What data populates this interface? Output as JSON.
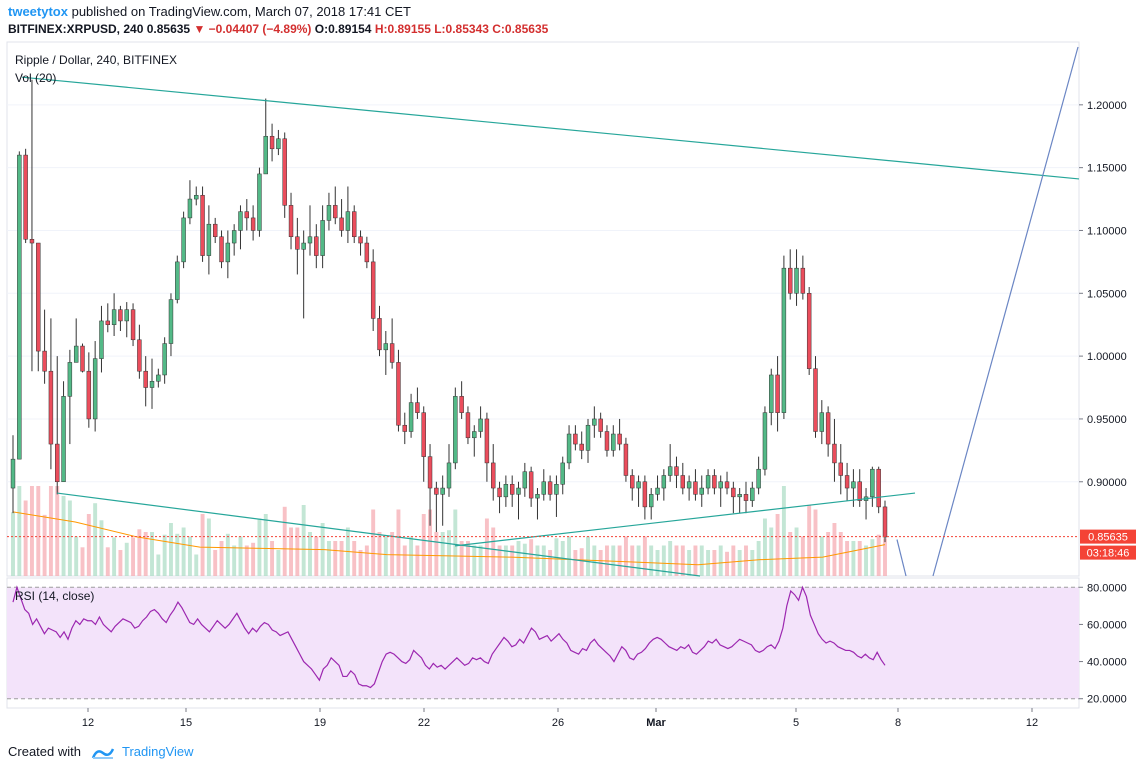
{
  "header": {
    "author": "tweetytox",
    "published_text": "published on TradingView.com, March 07, 2018 17:41 CET",
    "symbol": "BITFINEX:XRPUSD, 240",
    "last": "0.85635",
    "change": "▼ −0.04407 (−4.89%)",
    "open": "O:0.89154",
    "high": "H:0.89155",
    "low": "L:0.85343",
    "close": "C:0.85635"
  },
  "footer": {
    "created_with": "Created with",
    "brand": "TradingView"
  },
  "colors": {
    "up": "#53b987",
    "down": "#eb4d5c",
    "trendline": "#26a69a",
    "projection": "#6b86c4",
    "ma": "#ff9800",
    "rsi_line": "#9c27b0",
    "rsi_band": "#f3e3fa",
    "price_label": "#f44336"
  },
  "chart_data": [
    {
      "type": "candlestick",
      "title": "Ripple / Dollar, 240, BITFINEX",
      "volume_label": "Vol (20)",
      "x_ticks": [
        "12",
        "15",
        "19",
        "22",
        "26",
        "Mar",
        "5",
        "8",
        "12"
      ],
      "y_ticks": [
        "1.20000",
        "1.15000",
        "1.10000",
        "1.05000",
        "1.00000",
        "0.95000",
        "0.90000"
      ],
      "ylim": [
        0.825,
        1.25
      ],
      "current_price_label": "0.85635",
      "countdown_label": "03:18:46",
      "candles": [
        [
          0.895,
          0.937,
          0.875,
          0.918
        ],
        [
          0.918,
          1.163,
          0.918,
          1.16
        ],
        [
          1.16,
          1.165,
          1.09,
          1.093
        ],
        [
          1.093,
          1.22,
          0.988,
          1.09
        ],
        [
          1.09,
          1.09,
          0.988,
          1.004
        ],
        [
          1.004,
          1.037,
          0.978,
          0.988
        ],
        [
          0.988,
          1.03,
          0.91,
          0.93
        ],
        [
          0.93,
          1.0,
          0.89,
          0.9
        ],
        [
          0.9,
          0.98,
          0.9,
          0.968
        ],
        [
          0.968,
          1.005,
          0.93,
          0.995
        ],
        [
          0.995,
          1.03,
          0.995,
          1.008
        ],
        [
          1.008,
          1.01,
          0.987,
          0.988
        ],
        [
          0.988,
          1.003,
          0.943,
          0.95
        ],
        [
          0.95,
          1.012,
          0.94,
          0.998
        ],
        [
          0.998,
          1.04,
          0.987,
          1.028
        ],
        [
          1.028,
          1.042,
          1.019,
          1.025
        ],
        [
          1.025,
          1.05,
          1.016,
          1.037
        ],
        [
          1.037,
          1.04,
          1.02,
          1.028
        ],
        [
          1.028,
          1.043,
          1.015,
          1.037
        ],
        [
          1.037,
          1.042,
          1.008,
          1.013
        ],
        [
          1.013,
          1.025,
          0.982,
          0.988
        ],
        [
          0.988,
          1.0,
          0.96,
          0.975
        ],
        [
          0.975,
          0.998,
          0.958,
          0.98
        ],
        [
          0.98,
          0.99,
          0.975,
          0.985
        ],
        [
          0.985,
          1.015,
          0.978,
          1.01
        ],
        [
          1.01,
          1.05,
          1.0,
          1.045
        ],
        [
          1.045,
          1.08,
          1.042,
          1.075
        ],
        [
          1.075,
          1.115,
          1.07,
          1.11
        ],
        [
          1.11,
          1.14,
          1.105,
          1.125
        ],
        [
          1.125,
          1.135,
          1.12,
          1.128
        ],
        [
          1.128,
          1.135,
          1.075,
          1.08
        ],
        [
          1.08,
          1.12,
          1.065,
          1.105
        ],
        [
          1.105,
          1.11,
          1.09,
          1.095
        ],
        [
          1.095,
          1.1,
          1.07,
          1.075
        ],
        [
          1.075,
          1.1,
          1.062,
          1.09
        ],
        [
          1.09,
          1.105,
          1.08,
          1.1
        ],
        [
          1.1,
          1.12,
          1.085,
          1.115
        ],
        [
          1.115,
          1.125,
          1.1,
          1.11
        ],
        [
          1.11,
          1.12,
          1.092,
          1.1
        ],
        [
          1.1,
          1.15,
          1.095,
          1.145
        ],
        [
          1.145,
          1.205,
          1.145,
          1.175
        ],
        [
          1.175,
          1.185,
          1.155,
          1.165
        ],
        [
          1.165,
          1.18,
          1.16,
          1.173
        ],
        [
          1.173,
          1.178,
          1.11,
          1.12
        ],
        [
          1.12,
          1.13,
          1.085,
          1.095
        ],
        [
          1.095,
          1.11,
          1.065,
          1.085
        ],
        [
          1.085,
          1.1,
          1.03,
          1.09
        ],
        [
          1.09,
          1.12,
          1.08,
          1.095
        ],
        [
          1.095,
          1.105,
          1.07,
          1.08
        ],
        [
          1.08,
          1.12,
          1.07,
          1.108
        ],
        [
          1.108,
          1.13,
          1.1,
          1.12
        ],
        [
          1.12,
          1.135,
          1.105,
          1.11
        ],
        [
          1.11,
          1.125,
          1.095,
          1.1
        ],
        [
          1.1,
          1.135,
          1.09,
          1.115
        ],
        [
          1.115,
          1.12,
          1.09,
          1.095
        ],
        [
          1.095,
          1.1,
          1.08,
          1.09
        ],
        [
          1.09,
          1.095,
          1.07,
          1.075
        ],
        [
          1.075,
          1.085,
          1.02,
          1.03
        ],
        [
          1.03,
          1.04,
          1.0,
          1.005
        ],
        [
          1.005,
          1.02,
          0.985,
          1.01
        ],
        [
          1.01,
          1.03,
          0.99,
          0.995
        ],
        [
          0.995,
          1.005,
          0.94,
          0.945
        ],
        [
          0.945,
          0.955,
          0.93,
          0.94
        ],
        [
          0.94,
          0.97,
          0.935,
          0.963
        ],
        [
          0.963,
          0.975,
          0.95,
          0.955
        ],
        [
          0.955,
          0.96,
          0.9,
          0.92
        ],
        [
          0.92,
          0.93,
          0.865,
          0.895
        ],
        [
          0.895,
          0.9,
          0.86,
          0.89
        ],
        [
          0.89,
          0.905,
          0.865,
          0.895
        ],
        [
          0.895,
          0.93,
          0.888,
          0.915
        ],
        [
          0.915,
          0.975,
          0.91,
          0.968
        ],
        [
          0.968,
          0.98,
          0.95,
          0.955
        ],
        [
          0.955,
          0.96,
          0.93,
          0.935
        ],
        [
          0.935,
          0.945,
          0.92,
          0.94
        ],
        [
          0.94,
          0.96,
          0.935,
          0.95
        ],
        [
          0.95,
          0.955,
          0.9,
          0.915
        ],
        [
          0.915,
          0.93,
          0.885,
          0.895
        ],
        [
          0.895,
          0.9,
          0.875,
          0.888
        ],
        [
          0.888,
          0.905,
          0.88,
          0.898
        ],
        [
          0.898,
          0.905,
          0.88,
          0.89
        ],
        [
          0.89,
          0.9,
          0.87,
          0.895
        ],
        [
          0.895,
          0.915,
          0.888,
          0.908
        ],
        [
          0.908,
          0.912,
          0.88,
          0.887
        ],
        [
          0.887,
          0.895,
          0.87,
          0.89
        ],
        [
          0.89,
          0.91,
          0.885,
          0.9
        ],
        [
          0.9,
          0.905,
          0.885,
          0.89
        ],
        [
          0.89,
          0.905,
          0.872,
          0.898
        ],
        [
          0.898,
          0.92,
          0.89,
          0.915
        ],
        [
          0.915,
          0.945,
          0.91,
          0.938
        ],
        [
          0.938,
          0.945,
          0.925,
          0.93
        ],
        [
          0.93,
          0.94,
          0.918,
          0.925
        ],
        [
          0.925,
          0.95,
          0.915,
          0.945
        ],
        [
          0.945,
          0.96,
          0.935,
          0.95
        ],
        [
          0.95,
          0.955,
          0.935,
          0.94
        ],
        [
          0.94,
          0.945,
          0.92,
          0.925
        ],
        [
          0.925,
          0.945,
          0.92,
          0.938
        ],
        [
          0.938,
          0.95,
          0.925,
          0.93
        ],
        [
          0.93,
          0.935,
          0.9,
          0.905
        ],
        [
          0.905,
          0.91,
          0.885,
          0.895
        ],
        [
          0.895,
          0.905,
          0.88,
          0.9
        ],
        [
          0.9,
          0.905,
          0.87,
          0.88
        ],
        [
          0.88,
          0.895,
          0.87,
          0.89
        ],
        [
          0.89,
          0.905,
          0.885,
          0.895
        ],
        [
          0.895,
          0.91,
          0.885,
          0.905
        ],
        [
          0.905,
          0.93,
          0.9,
          0.912
        ],
        [
          0.912,
          0.92,
          0.895,
          0.905
        ],
        [
          0.905,
          0.915,
          0.89,
          0.895
        ],
        [
          0.895,
          0.905,
          0.885,
          0.9
        ],
        [
          0.9,
          0.91,
          0.885,
          0.89
        ],
        [
          0.89,
          0.905,
          0.88,
          0.895
        ],
        [
          0.895,
          0.91,
          0.89,
          0.905
        ],
        [
          0.905,
          0.91,
          0.89,
          0.895
        ],
        [
          0.895,
          0.905,
          0.88,
          0.9
        ],
        [
          0.9,
          0.908,
          0.89,
          0.895
        ],
        [
          0.895,
          0.9,
          0.875,
          0.888
        ],
        [
          0.888,
          0.895,
          0.875,
          0.89
        ],
        [
          0.89,
          0.9,
          0.875,
          0.885
        ],
        [
          0.885,
          0.9,
          0.88,
          0.895
        ],
        [
          0.895,
          0.92,
          0.89,
          0.91
        ],
        [
          0.91,
          0.96,
          0.905,
          0.955
        ],
        [
          0.955,
          0.99,
          0.945,
          0.985
        ],
        [
          0.985,
          1.0,
          0.94,
          0.955
        ],
        [
          0.955,
          1.08,
          0.95,
          1.07
        ],
        [
          1.07,
          1.085,
          1.045,
          1.05
        ],
        [
          1.05,
          1.085,
          1.04,
          1.07
        ],
        [
          1.07,
          1.08,
          1.045,
          1.05
        ],
        [
          1.05,
          1.055,
          0.985,
          0.99
        ],
        [
          0.99,
          1.0,
          0.935,
          0.94
        ],
        [
          0.94,
          0.965,
          0.93,
          0.955
        ],
        [
          0.955,
          0.96,
          0.92,
          0.93
        ],
        [
          0.93,
          0.95,
          0.9,
          0.915
        ],
        [
          0.915,
          0.93,
          0.89,
          0.905
        ],
        [
          0.905,
          0.915,
          0.885,
          0.895
        ],
        [
          0.895,
          0.91,
          0.88,
          0.9
        ],
        [
          0.9,
          0.91,
          0.88,
          0.885
        ],
        [
          0.885,
          0.895,
          0.87,
          0.888
        ],
        [
          0.888,
          0.912,
          0.88,
          0.91
        ],
        [
          0.91,
          0.912,
          0.875,
          0.88
        ],
        [
          0.88,
          0.885,
          0.852,
          0.856
        ]
      ],
      "ma_y": [
        0.876,
        0.868,
        0.856,
        0.848,
        0.847,
        0.846,
        0.842,
        0.841,
        0.84,
        0.838,
        0.836,
        0.834,
        0.838,
        0.84,
        0.85
      ]
    },
    {
      "type": "line",
      "title": "RSI (14, close)",
      "y_ticks": [
        "80.0000",
        "60.0000",
        "40.0000",
        "20.0000"
      ],
      "ylim": [
        15,
        85
      ],
      "band": [
        20,
        80
      ],
      "values": [
        72,
        80,
        74,
        68,
        66,
        60,
        63,
        59,
        55,
        58,
        57,
        56,
        53,
        56,
        52,
        58,
        62,
        60,
        63,
        62,
        62,
        60,
        64,
        60,
        58,
        56,
        59,
        61,
        63,
        62,
        61,
        58,
        59,
        62,
        64,
        67,
        68,
        66,
        63,
        61,
        65,
        68,
        72,
        69,
        65,
        61,
        60,
        63,
        60,
        58,
        56,
        59,
        62,
        60,
        58,
        60,
        63,
        66,
        62,
        58,
        55,
        58,
        56,
        59,
        61,
        60,
        57,
        56,
        54,
        55,
        56,
        52,
        48,
        44,
        40,
        38,
        36,
        33,
        30,
        36,
        38,
        42,
        40,
        38,
        32,
        32,
        35,
        33,
        28,
        27,
        27,
        26,
        28,
        34,
        40,
        44,
        45,
        44,
        42,
        40,
        39,
        41,
        46,
        44,
        42,
        38,
        36,
        39,
        37,
        38,
        36,
        38,
        40,
        42,
        40,
        38,
        39,
        42,
        41,
        42,
        40,
        39,
        44,
        47,
        50,
        53,
        51,
        48,
        49,
        52,
        50,
        54,
        58,
        56,
        52,
        53,
        54,
        51,
        53,
        55,
        52,
        50,
        46,
        45,
        44,
        47,
        46,
        50,
        52,
        49,
        47,
        45,
        43,
        40,
        44,
        48,
        46,
        42,
        41,
        44,
        45,
        47,
        50,
        52,
        53,
        52,
        50,
        48,
        47,
        46,
        48,
        47,
        49,
        45,
        44,
        46,
        48,
        51,
        50,
        52,
        49,
        48,
        47,
        48,
        50,
        52,
        51,
        50,
        49,
        46,
        45,
        46,
        48,
        49,
        47,
        51,
        58,
        70,
        78,
        76,
        73,
        80,
        75,
        65,
        60,
        55,
        52,
        50,
        51,
        50,
        48,
        47,
        46,
        46,
        45,
        43,
        42,
        44,
        42,
        41,
        45,
        41,
        38
      ]
    }
  ]
}
